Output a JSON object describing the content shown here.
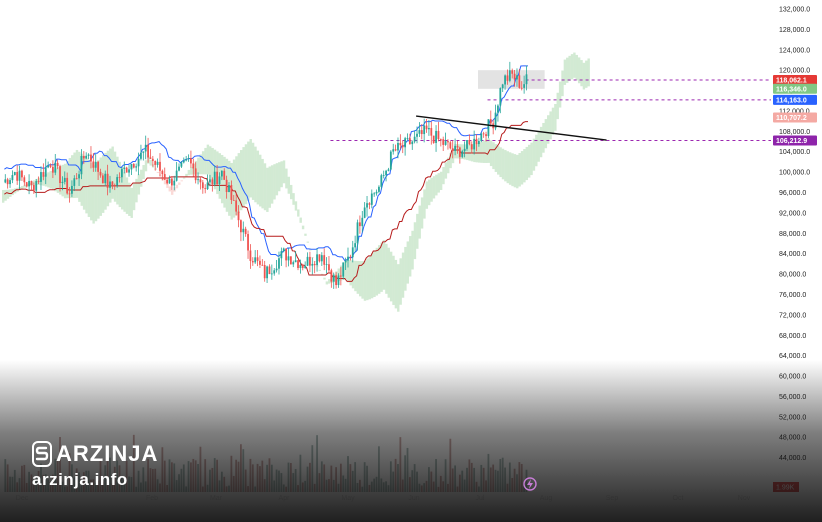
{
  "brand": {
    "name": "ARZINJA",
    "url": "arzinja.info",
    "logo_icon": "coin-s-icon"
  },
  "replay_icon": "lightning-circle-icon",
  "colors": {
    "up": "#26a69a",
    "down": "#ef5350",
    "tenkan": "#2962ff",
    "kijun": "#b71c1c",
    "cloud_up": "#a5d6a7",
    "cloud_down": "#f7b6b0",
    "trend": "#111111",
    "level": "#9c27b0"
  },
  "chart_data": {
    "type": "candlestick",
    "title": "",
    "ylim": [
      40000,
      132000
    ],
    "y_ticks": [
      "132,000.0",
      "128,000.0",
      "124,000.0",
      "120,000.0",
      "116,000.0",
      "112,000.0",
      "108,000.0",
      "104,000.0",
      "100,000.0",
      "96,000.0",
      "92,000.0",
      "88,000.0",
      "84,000.0",
      "80,000.0",
      "76,000.0",
      "72,000.0",
      "68,000.0",
      "64,000.0",
      "60,000.0",
      "56,000.0",
      "52,000.0",
      "48,000.0",
      "44,000.0"
    ],
    "x_ticks": [
      "Dec",
      "2025",
      "Feb",
      "Mar",
      "Apr",
      "May",
      "Jun",
      "Jul",
      "Aug",
      "Sep",
      "Oct",
      "Nov"
    ],
    "price_labels": [
      {
        "value": 118062.1,
        "text": "118,062.1",
        "color": "#e53935"
      },
      {
        "value": 116346.0,
        "text": "116,346.0",
        "color": "#81c784"
      },
      {
        "value": 114163.0,
        "text": "114,163.0",
        "color": "#2962ff"
      },
      {
        "value": 110707.2,
        "text": "110,707.2",
        "color": "#f4a9a3"
      },
      {
        "value": 106212.9,
        "text": "106,212.9",
        "color": "#8e24aa"
      }
    ],
    "volume_label": "1.99K",
    "anchors": [
      [
        0,
        98000
      ],
      [
        5,
        100000
      ],
      [
        12,
        97000
      ],
      [
        20,
        102000
      ],
      [
        28,
        96000
      ],
      [
        35,
        104000
      ],
      [
        45,
        97000
      ],
      [
        52,
        101000
      ],
      [
        60,
        104000
      ],
      [
        70,
        98000
      ],
      [
        78,
        102000
      ],
      [
        85,
        97000
      ],
      [
        92,
        100000
      ],
      [
        98,
        92000
      ],
      [
        104,
        84000
      ],
      [
        110,
        80000
      ],
      [
        118,
        84000
      ],
      [
        126,
        82000
      ],
      [
        134,
        84000
      ],
      [
        140,
        78000
      ],
      [
        146,
        84000
      ],
      [
        152,
        94000
      ],
      [
        158,
        97000
      ],
      [
        164,
        104000
      ],
      [
        172,
        106000
      ],
      [
        178,
        108000
      ],
      [
        184,
        106000
      ],
      [
        190,
        104000
      ],
      [
        196,
        105000
      ],
      [
        202,
        108000
      ],
      [
        206,
        110000
      ],
      [
        210,
        118000
      ],
      [
        214,
        119000
      ],
      [
        218,
        117000
      ],
      [
        220,
        118000
      ]
    ],
    "tenkan_offset": 2600,
    "kijun_offset": -2300,
    "zone": {
      "x_start": 200,
      "x_end": 228,
      "y_low": 116346,
      "y_high": 120000
    },
    "trendline": {
      "x1": 174,
      "y1": 111000,
      "x2": 254,
      "y2": 106300
    },
    "levels": [
      {
        "x_start": 138,
        "x_end": 330,
        "value": 106212.9
      },
      {
        "x_start": 204,
        "x_end": 330,
        "value": 114163.0
      },
      {
        "x_start": 220,
        "x_end": 330,
        "value": 118062.1
      }
    ]
  }
}
